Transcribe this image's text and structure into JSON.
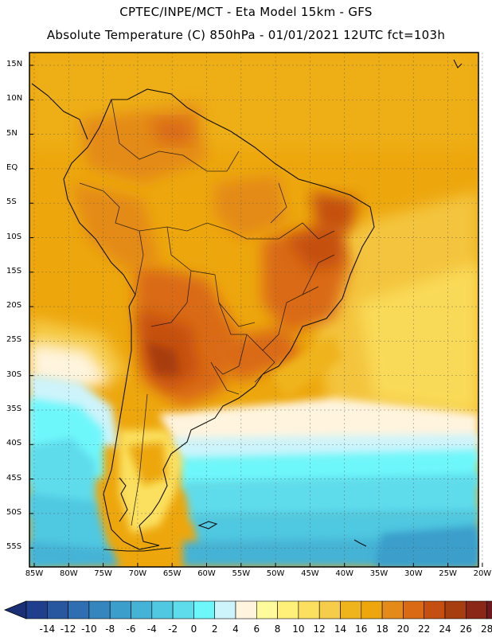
{
  "header": {
    "line1": "CPTEC/INPE/MCT -  Eta Model 15km - GFS",
    "line2": "Absolute Temperature (C) 850hPa - 01/01/2021 12UTC fct=103h"
  },
  "map": {
    "lat_labels": [
      "15N",
      "10N",
      "5N",
      "EQ",
      "5S",
      "10S",
      "15S",
      "20S",
      "25S",
      "30S",
      "35S",
      "40S",
      "45S",
      "50S",
      "55S"
    ],
    "lon_labels": [
      "85W",
      "80W",
      "75W",
      "70W",
      "65W",
      "60W",
      "55W",
      "50W",
      "45W",
      "40W",
      "35W",
      "30W",
      "25W",
      "20W"
    ],
    "lon_range": [
      -85,
      -20
    ],
    "lat_range": [
      -57.5,
      17.5
    ]
  },
  "colorbar": {
    "labels": [
      "-14",
      "-12",
      "-10",
      "-8",
      "-6",
      "-4",
      "-2",
      "0",
      "2",
      "4",
      "6",
      "8",
      "10",
      "12",
      "14",
      "16",
      "18",
      "20",
      "22",
      "24",
      "26",
      "28"
    ],
    "colors": [
      "#1f3f8c",
      "#2857a0",
      "#2f6eb0",
      "#3585be",
      "#3b9ecb",
      "#45b3d6",
      "#50c8e1",
      "#5edcec",
      "#6ef7fb",
      "#cdf4fb",
      "#fff4de",
      "#fffb9c",
      "#fff07a",
      "#fbe05f",
      "#f6cc4b",
      "#efb41c",
      "#eda70d",
      "#e48a18",
      "#da6a14",
      "#c54f10",
      "#a73e0f",
      "#8a2716",
      "#6b1a1d"
    ],
    "under_color": "#1a2f75",
    "over_color": "#6b0a2a"
  }
}
